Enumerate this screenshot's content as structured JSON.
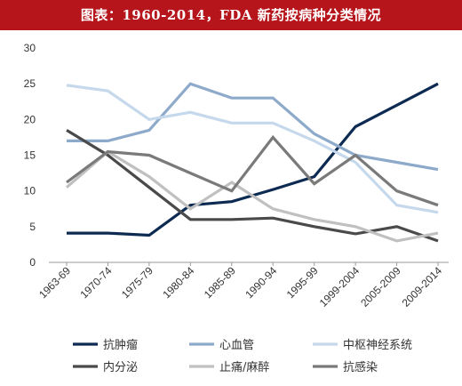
{
  "title": "图表：1960-2014，FDA 新药按病种分类情况",
  "colors": {
    "title_bar": "#b5151b",
    "title_text": "#ffffff"
  },
  "chart_data": {
    "type": "line",
    "title": "图表：1960-2014，FDA 新药按病种分类情况",
    "categories": [
      "1963-69",
      "1970-74",
      "1975-79",
      "1980-84",
      "1985-89",
      "1990-94",
      "1995-99",
      "1999-2004",
      "2005-2009",
      "2009-2014"
    ],
    "ylim": [
      0,
      30
    ],
    "yticks": [
      0,
      5,
      10,
      15,
      20,
      25,
      30
    ],
    "grid": false,
    "legend_position": "bottom",
    "series": [
      {
        "name": "抗肿瘤",
        "color": "#0d2b52",
        "values": [
          4.1,
          4.1,
          3.8,
          8,
          8.5,
          10.2,
          12,
          19,
          22,
          25
        ]
      },
      {
        "name": "心血管",
        "color": "#8eaacb",
        "values": [
          17,
          17,
          18.5,
          25,
          23,
          23,
          18,
          15,
          14,
          13
        ]
      },
      {
        "name": "中枢神经系统",
        "color": "#c6d8ec",
        "values": [
          24.8,
          24,
          20,
          21,
          19.5,
          19.5,
          17,
          14,
          8,
          7
        ]
      },
      {
        "name": "内分泌",
        "color": "#4a4a4a",
        "values": [
          18.5,
          15,
          10.5,
          6,
          6,
          6.2,
          5,
          4,
          5,
          3
        ]
      },
      {
        "name": "止痛/麻醉",
        "color": "#c0c0c0",
        "values": [
          10.5,
          15.5,
          12,
          7.5,
          11.2,
          7.5,
          6,
          5,
          3,
          4.1
        ]
      },
      {
        "name": "抗感染",
        "color": "#7a7a7a",
        "values": [
          11.2,
          15.5,
          15,
          12.5,
          10,
          17.5,
          11,
          15,
          10,
          8
        ]
      }
    ]
  }
}
